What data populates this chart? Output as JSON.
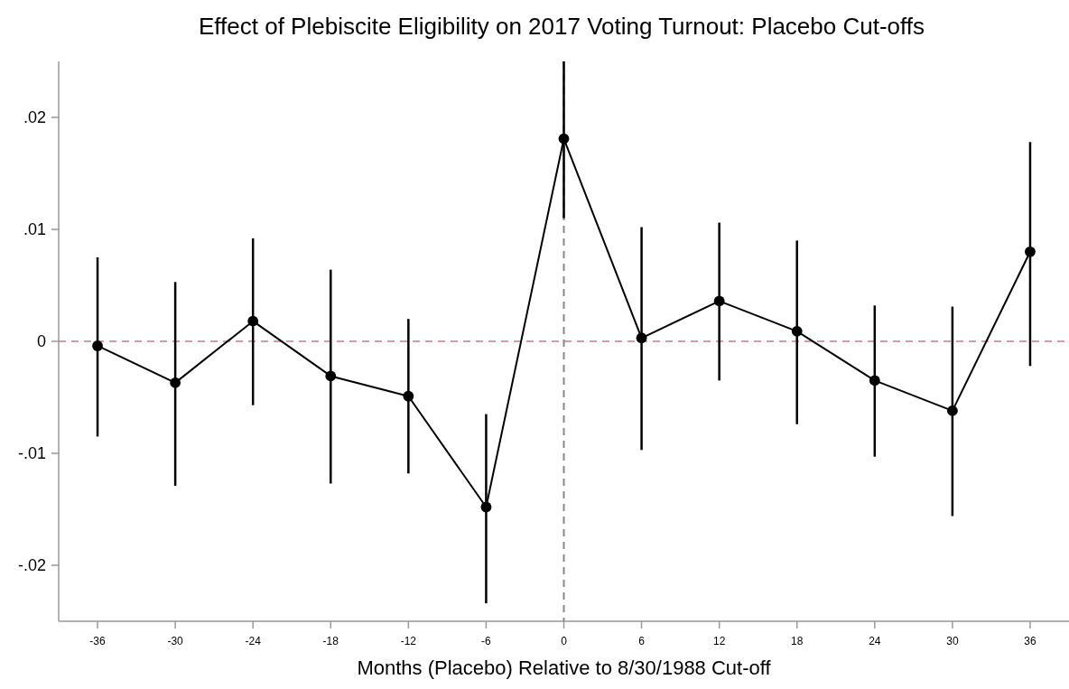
{
  "chart_data": {
    "type": "line",
    "title": "Effect of Plebiscite Eligibility on 2017 Voting Turnout: Placebo Cut-offs",
    "xlabel": "Months (Placebo) Relative to 8/30/1988 Cut-off",
    "x": [
      -36,
      -30,
      -24,
      -18,
      -12,
      -6,
      0,
      6,
      12,
      18,
      24,
      30,
      36
    ],
    "series": [
      {
        "color": "#000000",
        "values": [
          -0.0004,
          -0.0037,
          0.0018,
          -0.0031,
          -0.0049,
          -0.0148,
          0.0181,
          0.0003,
          0.0036,
          0.0009,
          -0.0035,
          -0.0062,
          0.008
        ],
        "errors": [
          [
            -0.0085,
            0.0075
          ],
          [
            -0.0129,
            0.0053
          ],
          [
            -0.0057,
            0.0092
          ],
          [
            -0.0127,
            0.0064
          ],
          [
            -0.0118,
            0.002
          ],
          [
            -0.0234,
            -0.0065
          ],
          [
            0.011,
            0.025
          ],
          [
            -0.0097,
            0.0102
          ],
          [
            -0.0035,
            0.0106
          ],
          [
            -0.0074,
            0.009
          ],
          [
            -0.0103,
            0.0032
          ],
          [
            -0.0156,
            0.0031
          ],
          [
            -0.0022,
            0.0178
          ]
        ]
      }
    ],
    "xlim": [
      -39,
      39
    ],
    "xticks": [
      -36,
      -30,
      -24,
      -18,
      -12,
      -6,
      0,
      6,
      12,
      18,
      24,
      30,
      36
    ],
    "ylim": [
      -0.025,
      0.025
    ],
    "yticks": [
      {
        "value": -0.02,
        "label": "-.02"
      },
      {
        "value": -0.01,
        "label": "-.01"
      },
      0,
      {
        "value": 0.01,
        "label": ".01"
      },
      {
        "value": 0.02,
        "label": ".02"
      }
    ],
    "ref_lines": [
      {
        "axis": "y",
        "value": 0,
        "color": "#c27b9c",
        "line_style": "dashed"
      },
      {
        "axis": "x",
        "value": 0,
        "color": "#888888",
        "line_style": "dashed"
      }
    ],
    "marker": "circle",
    "line_style": "solid",
    "grid": false
  }
}
